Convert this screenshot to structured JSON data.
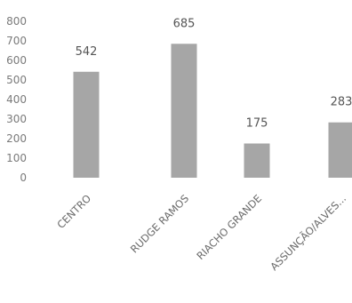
{
  "chart_data": {
    "type": "bar",
    "title": "",
    "xlabel": "",
    "ylabel": "",
    "categories": [
      "CENTRO",
      "RUDGE RAMOS",
      "RIACHO GRANDE",
      "ASSUNÇÃO/ALVES..."
    ],
    "values": [
      542,
      685,
      175,
      283
    ],
    "ylim": [
      0,
      800
    ],
    "yticks": [
      0,
      100,
      200,
      300,
      400,
      500,
      600,
      700,
      800
    ],
    "grid": false,
    "legend": "none",
    "bar_color": "#a6a6a6"
  }
}
